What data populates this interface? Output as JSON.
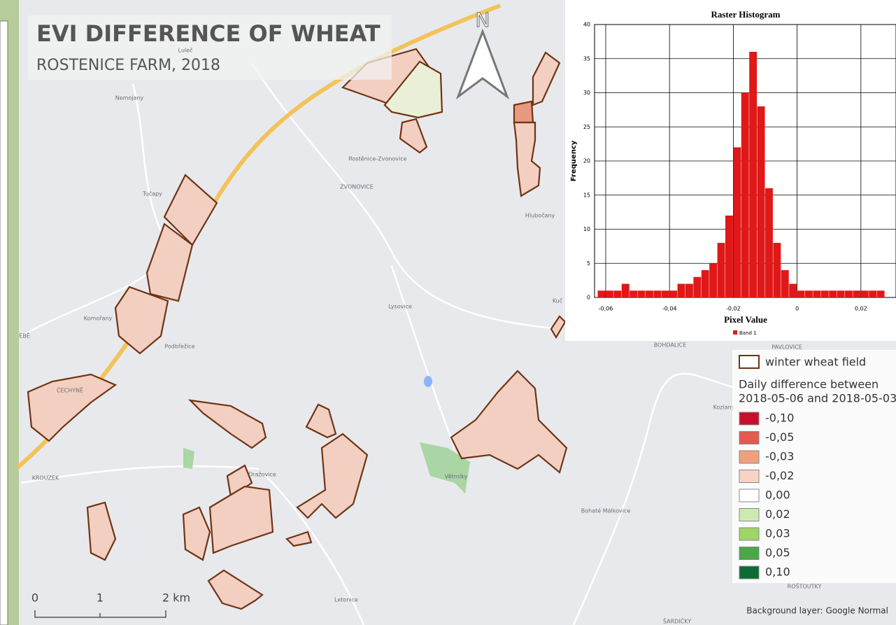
{
  "map": {
    "title": "EVI DIFFERENCE OF WHEAT",
    "subtitle": "ROSTENICE FARM, 2018",
    "north": "N",
    "places": [
      "Luleč",
      "Nemojany",
      "Tučapy",
      "Rostěnice-Zvonovice",
      "ZVONOVICE",
      "Hlubočany",
      "Komořany",
      "Podbřežice",
      "Lysovice",
      "BOHDALICE",
      "PAVLOVICE",
      "Kozlany",
      "ČECHYNĚ",
      "KROUZEK",
      "Dražovice",
      "Větrníky",
      "Bohaté Málkovice",
      "Letonice",
      "ROŠTOUTKY",
      "ŠARDIČKY",
      "EBĚ",
      "Kuč"
    ],
    "scale_labels": [
      "0",
      "1",
      "2 km"
    ],
    "credit": "Background layer: Google Normal"
  },
  "legend": {
    "field_label": "winter wheat field",
    "heading": [
      "Daily difference between",
      "2018-05-06 and 2018-05-03"
    ],
    "classes": [
      {
        "label": "-0,10",
        "color": "#c8102e"
      },
      {
        "label": "-0,05",
        "color": "#e35a4f"
      },
      {
        "label": "-0,03",
        "color": "#f0a07c"
      },
      {
        "label": "-0,02",
        "color": "#f8d3c4"
      },
      {
        "label": "0,00",
        "color": "#ffffff"
      },
      {
        "label": "0,02",
        "color": "#cdebb0"
      },
      {
        "label": "0,03",
        "color": "#9fd466"
      },
      {
        "label": "0,05",
        "color": "#4aa846"
      },
      {
        "label": "0,10",
        "color": "#0f6b34"
      }
    ]
  },
  "chart_data": {
    "type": "histogram",
    "title": "Raster Histogram",
    "xlabel": "Pixel Value",
    "ylabel": "Frequency",
    "series": [
      {
        "name": "Band 1",
        "color": "#e01818",
        "bins": [
          -0.0625,
          -0.06,
          -0.0575,
          -0.055,
          -0.0525,
          -0.05,
          -0.0475,
          -0.045,
          -0.0425,
          -0.04,
          -0.0375,
          -0.035,
          -0.0325,
          -0.03,
          -0.0275,
          -0.025,
          -0.0225,
          -0.02,
          -0.0175,
          -0.015,
          -0.0125,
          -0.01,
          -0.0075,
          -0.005,
          -0.0025,
          0,
          0.0025,
          0.005,
          0.0075,
          0.01,
          0.0125,
          0.015,
          0.0175,
          0.02,
          0.0225,
          0.025,
          0.0275,
          0.03
        ],
        "values": [
          1,
          1,
          1,
          2,
          1,
          1,
          1,
          1,
          1,
          1,
          2,
          2,
          3,
          4,
          5,
          8,
          12,
          22,
          30,
          36,
          28,
          16,
          8,
          4,
          2,
          1,
          1,
          1,
          1,
          1,
          1,
          1,
          1,
          1,
          1,
          1,
          0
        ]
      }
    ],
    "xlim": [
      -0.0635,
      0.031
    ],
    "ylim": [
      0,
      40
    ],
    "xticks": [
      {
        "value": -0.06,
        "label": "-0,06"
      },
      {
        "value": -0.04,
        "label": "-0,04"
      },
      {
        "value": -0.02,
        "label": "-0,02"
      },
      0,
      {
        "value": 0.02,
        "label": "0,02"
      }
    ],
    "yticks": [
      0,
      5,
      10,
      15,
      20,
      25,
      30,
      35,
      40
    ],
    "grid": true
  }
}
